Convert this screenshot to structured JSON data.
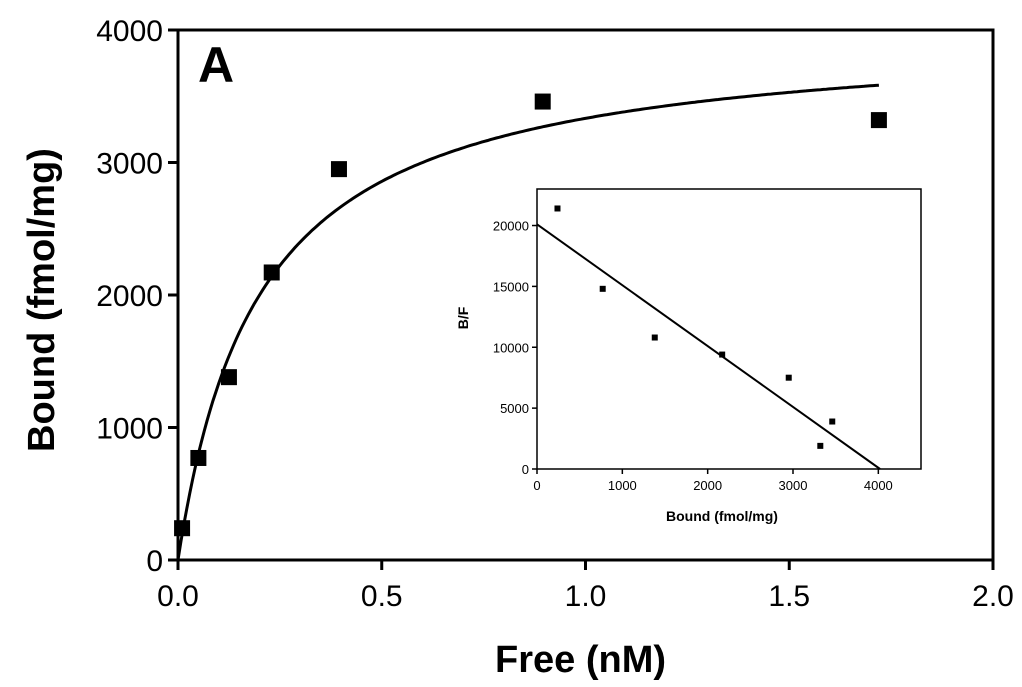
{
  "chart_data": {
    "type": "scatter",
    "panel_label": "A",
    "xlabel": "Free (nM)",
    "ylabel": "Bound (fmol/mg)",
    "xlim": [
      0.0,
      2.0
    ],
    "ylim": [
      0,
      4000
    ],
    "xticks": [
      "0.0",
      "0.5",
      "1.0",
      "1.5",
      "2.0"
    ],
    "yticks": [
      "0",
      "1000",
      "2000",
      "3000",
      "4000"
    ],
    "grid": false,
    "points": [
      {
        "x": 0.01,
        "y": 240
      },
      {
        "x": 0.05,
        "y": 770
      },
      {
        "x": 0.125,
        "y": 1380
      },
      {
        "x": 0.23,
        "y": 2170
      },
      {
        "x": 0.395,
        "y": 2950
      },
      {
        "x": 0.895,
        "y": 3460
      },
      {
        "x": 1.72,
        "y": 3320
      }
    ],
    "fit_curve": {
      "model": "one-site saturation",
      "bmax": 4000,
      "kd": 0.2,
      "x_range": [
        0.0,
        1.72
      ]
    },
    "inset": {
      "type": "scatter",
      "xlabel": "Bound (fmol/mg)",
      "ylabel": "B/F",
      "xlim": [
        0,
        4500
      ],
      "ylim": [
        0,
        23000
      ],
      "xticks": [
        "0",
        "1000",
        "2000",
        "3000",
        "4000"
      ],
      "yticks": [
        "0",
        "5000",
        "10000",
        "15000",
        "20000"
      ],
      "points": [
        {
          "x": 240,
          "y": 21400
        },
        {
          "x": 770,
          "y": 14800
        },
        {
          "x": 1380,
          "y": 10800
        },
        {
          "x": 2170,
          "y": 9400
        },
        {
          "x": 2950,
          "y": 7500
        },
        {
          "x": 3320,
          "y": 1900
        },
        {
          "x": 3460,
          "y": 3900
        }
      ],
      "fit_line": [
        {
          "x": 0,
          "y": 20100
        },
        {
          "x": 4020,
          "y": 0
        }
      ]
    }
  }
}
